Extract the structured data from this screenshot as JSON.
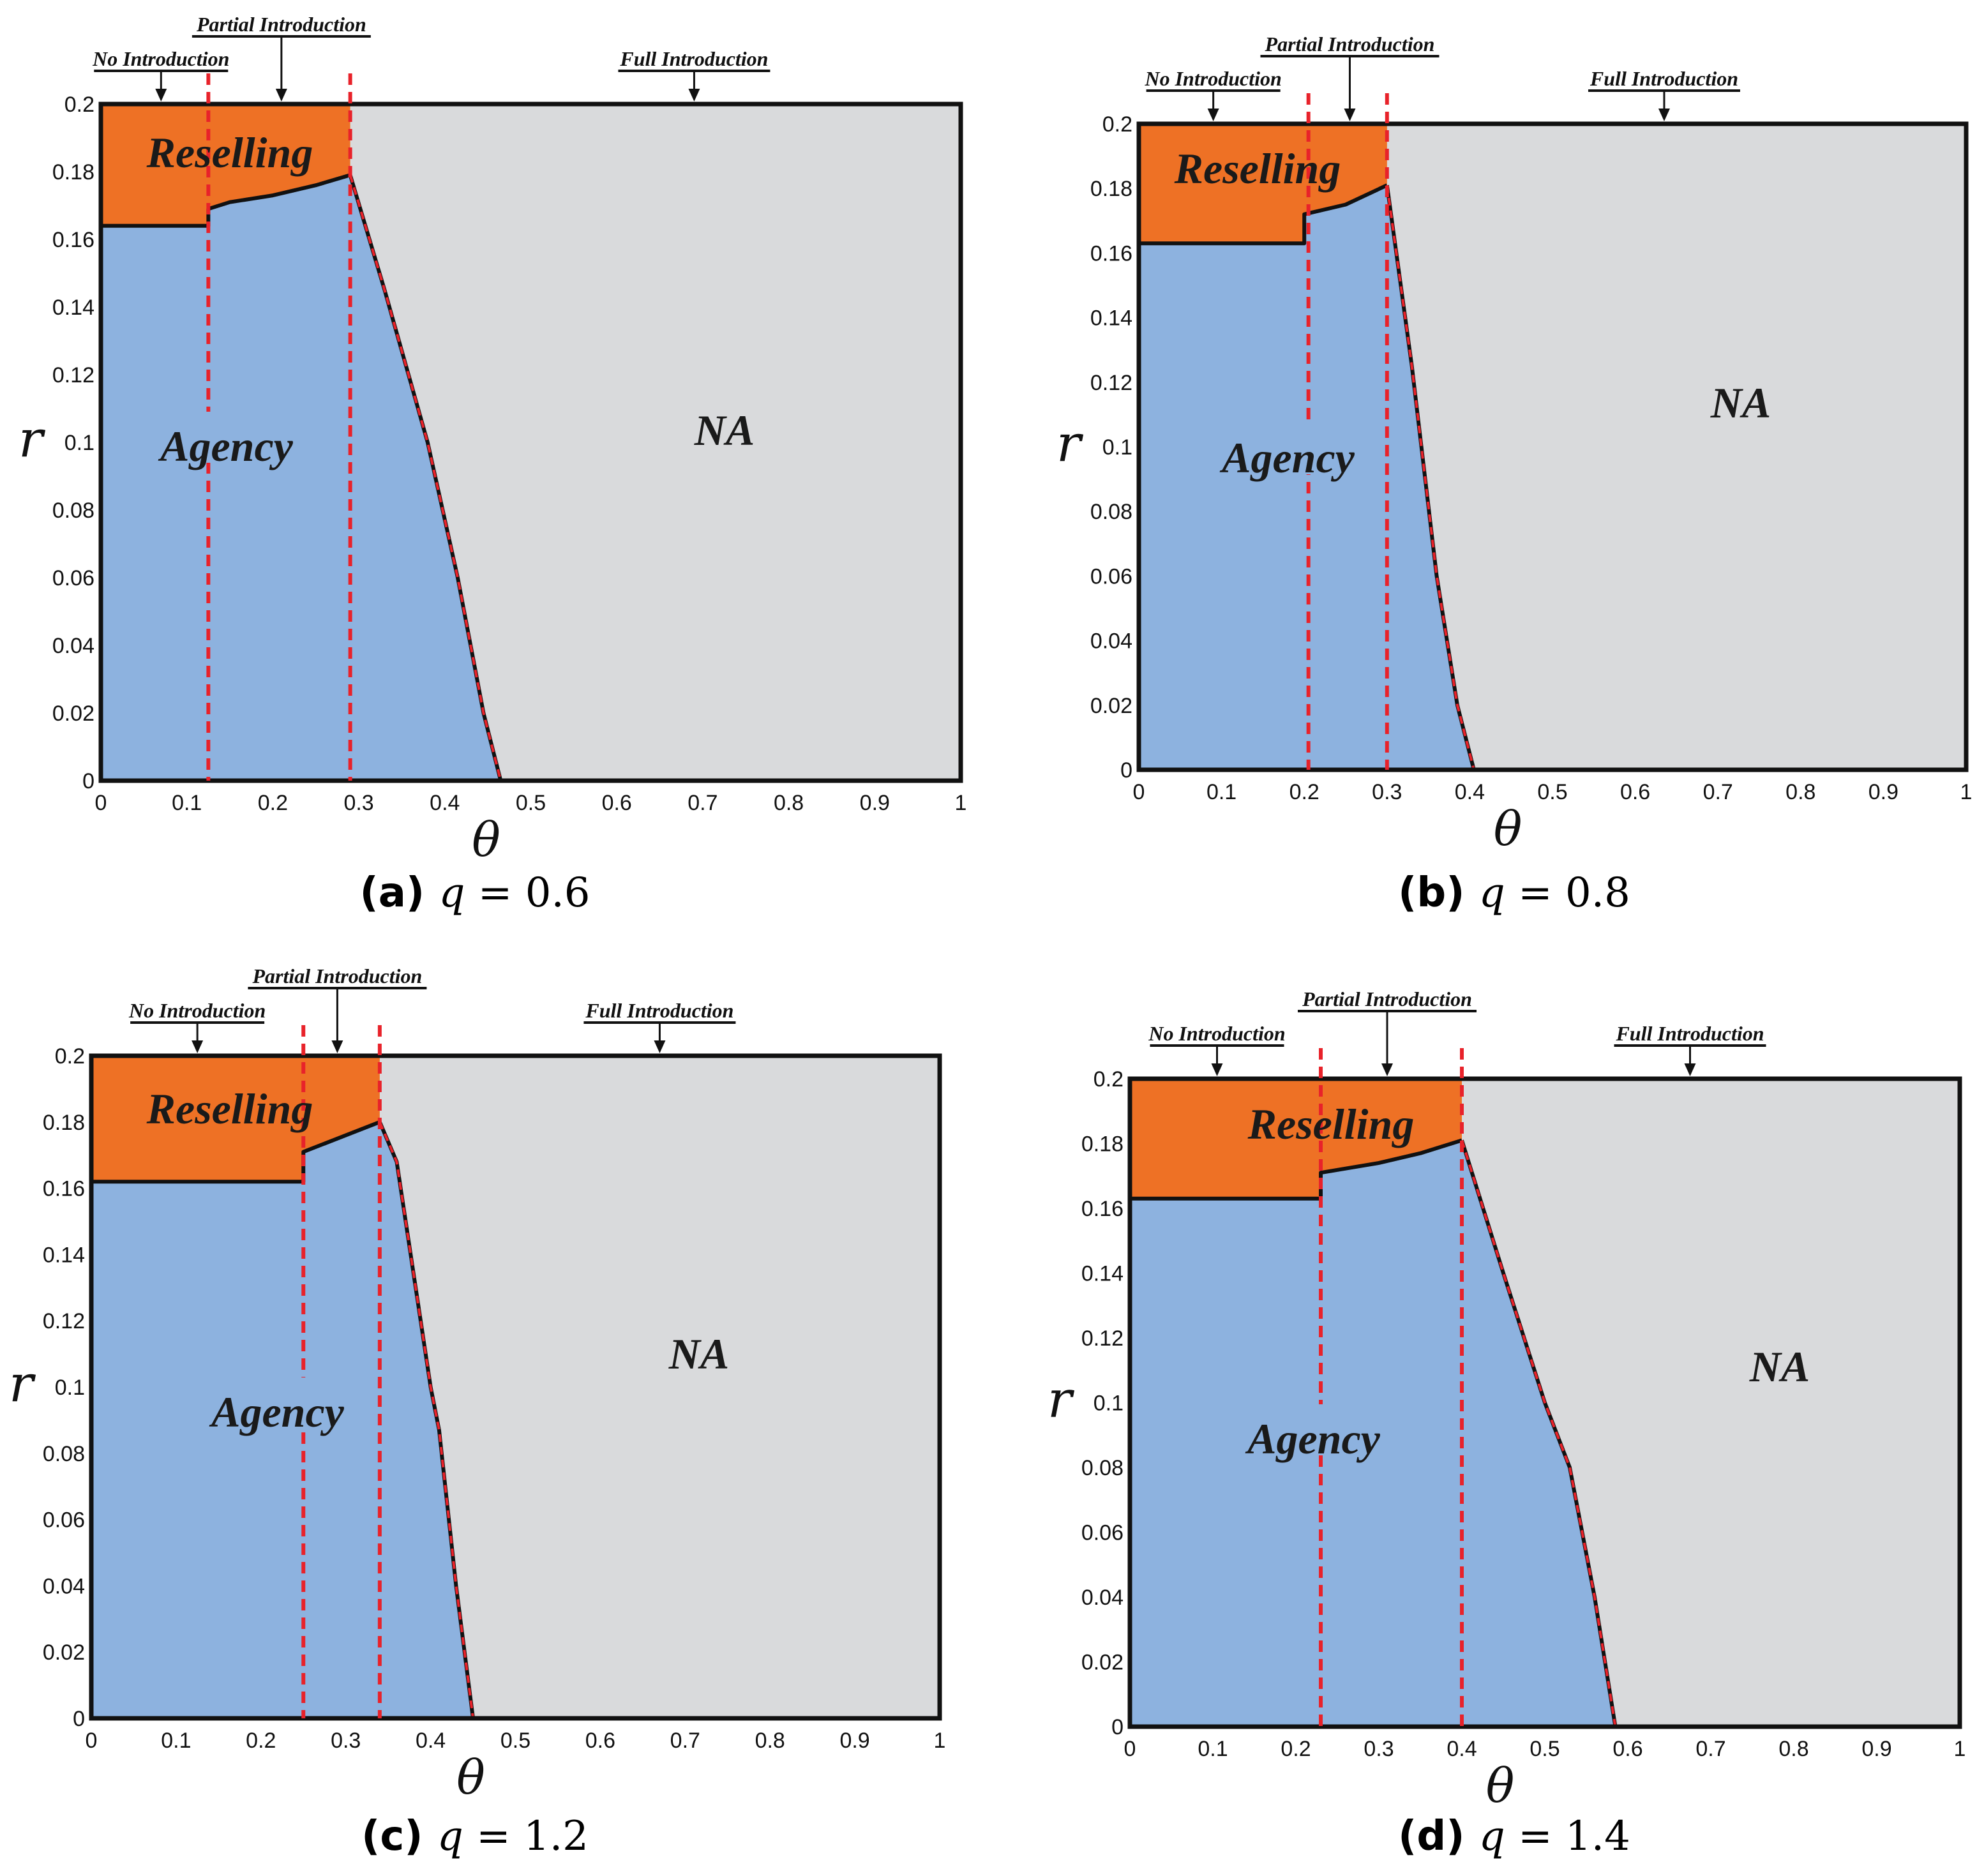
{
  "colors": {
    "reselling": "#ee7125",
    "agency": "#8db2df",
    "na": "#d9dadc",
    "boundary": "#111111",
    "threshold": "#e8222a",
    "frame": "#111111"
  },
  "chart_data": [
    {
      "type": "area",
      "panel": "a",
      "caption_letter": "(a)",
      "caption_var": "q",
      "caption_eq": "= 0.6",
      "q": 0.6,
      "xlabel": "θ",
      "ylabel": "r",
      "xlim": [
        0,
        1
      ],
      "ylim": [
        0,
        0.2
      ],
      "x_ticks": [
        "0",
        "0.1",
        "0.2",
        "0.3",
        "0.4",
        "0.5",
        "0.6",
        "0.7",
        "0.8",
        "0.9",
        "1"
      ],
      "y_ticks": [
        "0",
        "0.02",
        "0.04",
        "0.06",
        "0.08",
        "0.1",
        "0.12",
        "0.14",
        "0.16",
        "0.18",
        "0.2"
      ],
      "regions": [
        {
          "name": "Reselling",
          "label": "Reselling"
        },
        {
          "name": "Agency",
          "label": "Agency"
        },
        {
          "name": "NA",
          "label": "NA"
        }
      ],
      "boundaries": {
        "reselling_agency": [
          [
            0,
            0.164
          ],
          [
            0.125,
            0.164
          ],
          [
            0.125,
            0.169
          ],
          [
            0.15,
            0.171
          ],
          [
            0.2,
            0.173
          ],
          [
            0.25,
            0.176
          ],
          [
            0.29,
            0.179
          ]
        ],
        "agency_na": [
          [
            0.29,
            0.179
          ],
          [
            0.33,
            0.145
          ],
          [
            0.38,
            0.1
          ],
          [
            0.415,
            0.06
          ],
          [
            0.445,
            0.02
          ],
          [
            0.465,
            0
          ]
        ]
      },
      "thresholds": [
        0.125,
        0.29
      ],
      "annotations": [
        {
          "label": "No Introduction",
          "x": 0.07
        },
        {
          "label": "Partial Introduction",
          "x": 0.21
        },
        {
          "label": "Full Introduction",
          "x": 0.69
        }
      ]
    },
    {
      "type": "area",
      "panel": "b",
      "caption_letter": "(b)",
      "caption_var": "q",
      "caption_eq": "= 0.8",
      "q": 0.8,
      "xlabel": "θ",
      "ylabel": "r",
      "xlim": [
        0,
        1
      ],
      "ylim": [
        0,
        0.2
      ],
      "x_ticks": [
        "0",
        "0.1",
        "0.2",
        "0.3",
        "0.4",
        "0.5",
        "0.6",
        "0.7",
        "0.8",
        "0.9",
        "1"
      ],
      "y_ticks": [
        "0",
        "0.02",
        "0.04",
        "0.06",
        "0.08",
        "0.1",
        "0.12",
        "0.14",
        "0.16",
        "0.18",
        "0.2"
      ],
      "regions": [
        {
          "name": "Reselling",
          "label": "Reselling"
        },
        {
          "name": "Agency",
          "label": "Agency"
        },
        {
          "name": "NA",
          "label": "NA"
        }
      ],
      "boundaries": {
        "reselling_agency": [
          [
            0,
            0.163
          ],
          [
            0.2,
            0.163
          ],
          [
            0.2,
            0.172
          ],
          [
            0.25,
            0.175
          ],
          [
            0.3,
            0.181
          ]
        ],
        "agency_na": [
          [
            0.3,
            0.181
          ],
          [
            0.33,
            0.125
          ],
          [
            0.36,
            0.06
          ],
          [
            0.385,
            0.02
          ],
          [
            0.405,
            0
          ]
        ]
      },
      "thresholds": [
        0.205,
        0.3
      ],
      "annotations": [
        {
          "label": "No Introduction",
          "x": 0.09
        },
        {
          "label": "Partial Introduction",
          "x": 0.255
        },
        {
          "label": "Full Introduction",
          "x": 0.635
        }
      ]
    },
    {
      "type": "area",
      "panel": "c",
      "caption_letter": "(c)",
      "caption_var": "q",
      "caption_eq": "= 1.2",
      "q": 1.2,
      "xlabel": "θ",
      "ylabel": "r",
      "xlim": [
        0,
        1
      ],
      "ylim": [
        0,
        0.2
      ],
      "x_ticks": [
        "0",
        "0.1",
        "0.2",
        "0.3",
        "0.4",
        "0.5",
        "0.6",
        "0.7",
        "0.8",
        "0.9",
        "1"
      ],
      "y_ticks": [
        "0",
        "0.02",
        "0.04",
        "0.06",
        "0.08",
        "0.1",
        "0.12",
        "0.14",
        "0.16",
        "0.18",
        "0.2"
      ],
      "regions": [
        {
          "name": "Reselling",
          "label": "Reselling"
        },
        {
          "name": "Agency",
          "label": "Agency"
        },
        {
          "name": "NA",
          "label": "NA"
        }
      ],
      "boundaries": {
        "reselling_agency": [
          [
            0,
            0.162
          ],
          [
            0.25,
            0.162
          ],
          [
            0.25,
            0.171
          ],
          [
            0.3,
            0.176
          ],
          [
            0.34,
            0.18
          ]
        ],
        "agency_na": [
          [
            0.34,
            0.18
          ],
          [
            0.36,
            0.168
          ],
          [
            0.4,
            0.1
          ],
          [
            0.41,
            0.087
          ],
          [
            0.43,
            0.04
          ],
          [
            0.45,
            0
          ]
        ]
      },
      "thresholds": [
        0.25,
        0.34
      ],
      "annotations": [
        {
          "label": "No Introduction",
          "x": 0.125
        },
        {
          "label": "Partial Introduction",
          "x": 0.29
        },
        {
          "label": "Full Introduction",
          "x": 0.67
        }
      ]
    },
    {
      "type": "area",
      "panel": "d",
      "caption_letter": "(d)",
      "caption_var": "q",
      "caption_eq": "= 1.4",
      "q": 1.4,
      "xlabel": "θ",
      "ylabel": "r",
      "xlim": [
        0,
        1
      ],
      "ylim": [
        0,
        0.2
      ],
      "x_ticks": [
        "0",
        "0.1",
        "0.2",
        "0.3",
        "0.4",
        "0.5",
        "0.6",
        "0.7",
        "0.8",
        "0.9",
        "1"
      ],
      "y_ticks": [
        "0",
        "0.02",
        "0.04",
        "0.06",
        "0.08",
        "0.1",
        "0.12",
        "0.14",
        "0.16",
        "0.18",
        "0.2"
      ],
      "regions": [
        {
          "name": "Reselling",
          "label": "Reselling"
        },
        {
          "name": "Agency",
          "label": "Agency"
        },
        {
          "name": "NA",
          "label": "NA"
        }
      ],
      "boundaries": {
        "reselling_agency": [
          [
            0,
            0.163
          ],
          [
            0.23,
            0.163
          ],
          [
            0.23,
            0.171
          ],
          [
            0.3,
            0.174
          ],
          [
            0.35,
            0.177
          ],
          [
            0.4,
            0.181
          ]
        ],
        "agency_na": [
          [
            0.4,
            0.181
          ],
          [
            0.45,
            0.14
          ],
          [
            0.5,
            0.1
          ],
          [
            0.53,
            0.08
          ],
          [
            0.56,
            0.04
          ],
          [
            0.585,
            0
          ]
        ]
      },
      "thresholds": [
        0.23,
        0.4
      ],
      "annotations": [
        {
          "label": "No Introduction",
          "x": 0.105
        },
        {
          "label": "Partial Introduction",
          "x": 0.31
        },
        {
          "label": "Full Introduction",
          "x": 0.675
        }
      ]
    }
  ]
}
